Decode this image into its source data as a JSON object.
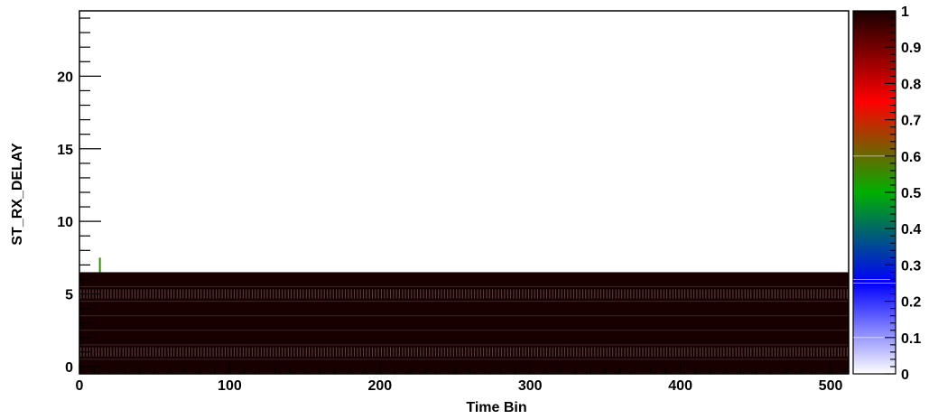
{
  "chart_data": {
    "type": "heatmap",
    "title": "",
    "xlabel": "Time Bin",
    "ylabel": "ST_RX_DELAY",
    "xlim": [
      0,
      512
    ],
    "ylim": [
      -0.5,
      24.5
    ],
    "zlim": [
      0,
      1
    ],
    "x_ticks": [
      "0",
      "100",
      "200",
      "300",
      "400",
      "500"
    ],
    "y_ticks": [
      "0",
      "5",
      "10",
      "15",
      "20"
    ],
    "z_ticks": [
      "0",
      "0.1",
      "0.2",
      "0.3",
      "0.4",
      "0.5",
      "0.6",
      "0.7",
      "0.8",
      "0.9",
      "1"
    ],
    "colormap": [
      "#ffffff",
      "#0000ff",
      "#00b000",
      "#ff0000",
      "#180000"
    ],
    "rows": [
      {
        "y": 0,
        "value": 1.0,
        "pattern": "solid"
      },
      {
        "y": 1,
        "value": 1.0,
        "pattern": "striped"
      },
      {
        "y": 2,
        "value": 1.0,
        "pattern": "solid"
      },
      {
        "y": 3,
        "value": 1.0,
        "pattern": "solid"
      },
      {
        "y": 4,
        "value": 1.0,
        "pattern": "solid"
      },
      {
        "y": 5,
        "value": 1.0,
        "pattern": "striped"
      },
      {
        "y": 6,
        "value": 1.0,
        "pattern": "solid"
      }
    ],
    "outliers": [
      {
        "x": 13,
        "y": 7,
        "value": 0.55
      }
    ]
  }
}
